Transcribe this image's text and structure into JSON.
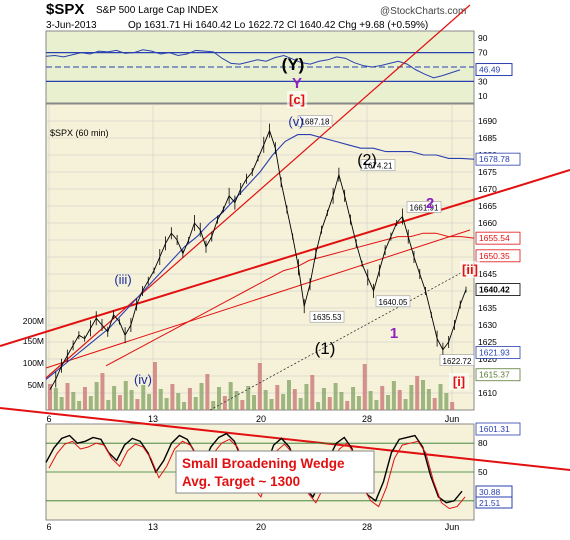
{
  "header": {
    "symbol": "$SPX",
    "name": "S&P 500 Large Cap INDEX",
    "date": "3-Jun-2013",
    "quote": "Op 1631.71  Hi 1640.42  Lo 1622.72  Cl 1640.42  Chg +9.68 (+0.59%)",
    "watermark": "@StockCharts.com"
  },
  "colors": {
    "price_bg": "#F6F2D9",
    "panel_bg": "#E8F0D0",
    "rsi_bg": "#DCE8F4",
    "blue": "#2A3FB0",
    "red": "#E21010",
    "green_vol": "#7FA060",
    "red_vol": "#C87070",
    "grid": "#C8C8C8",
    "label_blue": "#1A2BA0",
    "label_purple": "#9020C0"
  },
  "chart_data": [
    {
      "type": "line",
      "panel": "rsi_top",
      "title": "",
      "ylim": [
        0,
        100
      ],
      "y_ticks": [
        10,
        30,
        50,
        70,
        90
      ],
      "levels": [
        30,
        50,
        70
      ],
      "last_value": "46.49",
      "series": [
        {
          "values": [
            65,
            66,
            64,
            67,
            70,
            68,
            72,
            71,
            73,
            69,
            70,
            74,
            72,
            68,
            70,
            66,
            68,
            73,
            72,
            71,
            62,
            55,
            54,
            57,
            60,
            58,
            63,
            66,
            61,
            56,
            54,
            58,
            60,
            64,
            62,
            56,
            52,
            50,
            52,
            55,
            58,
            54,
            46,
            40,
            35,
            38,
            42,
            46
          ]
        }
      ]
    },
    {
      "type": "line",
      "panel": "price",
      "title": "$SPX (60 min)",
      "ylim": [
        1605,
        1695
      ],
      "y_ticks": [
        1610,
        1615,
        1620,
        1625,
        1630,
        1635,
        1640,
        1645,
        1650,
        1655,
        1660,
        1665,
        1670,
        1675,
        1680,
        1685,
        1690
      ],
      "x_ticks": [
        "6",
        "13",
        "20",
        "28",
        "Jun"
      ],
      "grid": true,
      "annotations": [
        "1687.18",
        "1674.21",
        "1661.91",
        "1635.53",
        "1640.05",
        "1622.72"
      ],
      "right_labels": [
        "1678.78",
        "1655.54",
        "1650.35",
        "1640.42",
        "1621.93",
        "1615.37",
        "1601.31"
      ],
      "wave_labels": [
        "(Y)",
        "Y",
        "[c]",
        "(v)",
        "(iii)",
        "(iv)",
        "(2)",
        "(1)",
        "2",
        "1",
        "[ii]",
        "[i]"
      ],
      "volume_ticks": [
        "200M",
        "150M",
        "100M",
        "50M"
      ],
      "series": [
        {
          "name": "SPX",
          "values": [
            1611,
            1614,
            1618,
            1621,
            1624,
            1627,
            1626,
            1629,
            1632,
            1630,
            1628,
            1633,
            1631,
            1627,
            1630,
            1636,
            1640,
            1643,
            1646,
            1650,
            1654,
            1657,
            1655,
            1651,
            1655,
            1660,
            1658,
            1653,
            1656,
            1661,
            1664,
            1668,
            1666,
            1670,
            1673,
            1675,
            1679,
            1683,
            1687.18,
            1682,
            1672,
            1664,
            1656,
            1647,
            1635.53,
            1642,
            1651,
            1658,
            1663,
            1668,
            1674.21,
            1668,
            1661,
            1654,
            1648,
            1644,
            1640.05,
            1646,
            1652,
            1656,
            1660,
            1661.91,
            1656,
            1650,
            1645,
            1640,
            1633,
            1626,
            1622.72,
            1625,
            1630,
            1636,
            1640.42
          ]
        },
        {
          "name": "MA blue",
          "values": [
            1614,
            1617,
            1620,
            1623,
            1626,
            1629,
            1633,
            1637,
            1641,
            1645,
            1649,
            1653,
            1656,
            1660,
            1663,
            1667,
            1671,
            1675,
            1680,
            1684,
            1686,
            1686,
            1685,
            1684,
            1683,
            1682,
            1682,
            1681,
            1681,
            1681,
            1680,
            1680,
            1679,
            1679,
            1678.78
          ]
        },
        {
          "name": "MA red",
          "values": [
            1618,
            1620,
            1622,
            1624,
            1626,
            1628,
            1630,
            1632,
            1634,
            1636,
            1638,
            1640,
            1642,
            1644,
            1646,
            1647,
            1649,
            1650,
            1651,
            1652,
            1653,
            1654,
            1655,
            1656,
            1656,
            1657,
            1657,
            1656,
            1656,
            1655.54
          ]
        }
      ]
    },
    {
      "type": "line",
      "panel": "rsi_bottom",
      "title": "",
      "y_ticks": [
        20,
        50,
        80
      ],
      "last_values": [
        "30.88",
        "21.51"
      ],
      "series": [
        {
          "values": [
            60,
            75,
            85,
            88,
            80,
            82,
            86,
            84,
            70,
            62,
            78,
            85,
            82,
            70,
            50,
            62,
            80,
            88,
            84,
            70,
            58,
            76,
            86,
            90,
            82,
            62,
            40,
            30,
            55,
            78,
            85,
            76,
            56,
            34,
            24,
            40,
            64,
            80,
            86,
            74,
            40,
            26,
            20,
            40,
            70,
            84,
            86,
            88,
            76,
            46,
            24,
            18,
            20,
            30
          ]
        }
      ]
    }
  ],
  "wedge_note": {
    "line1": "Small  Broadening Wedge",
    "line2": "Avg. Target ~ 1300"
  }
}
